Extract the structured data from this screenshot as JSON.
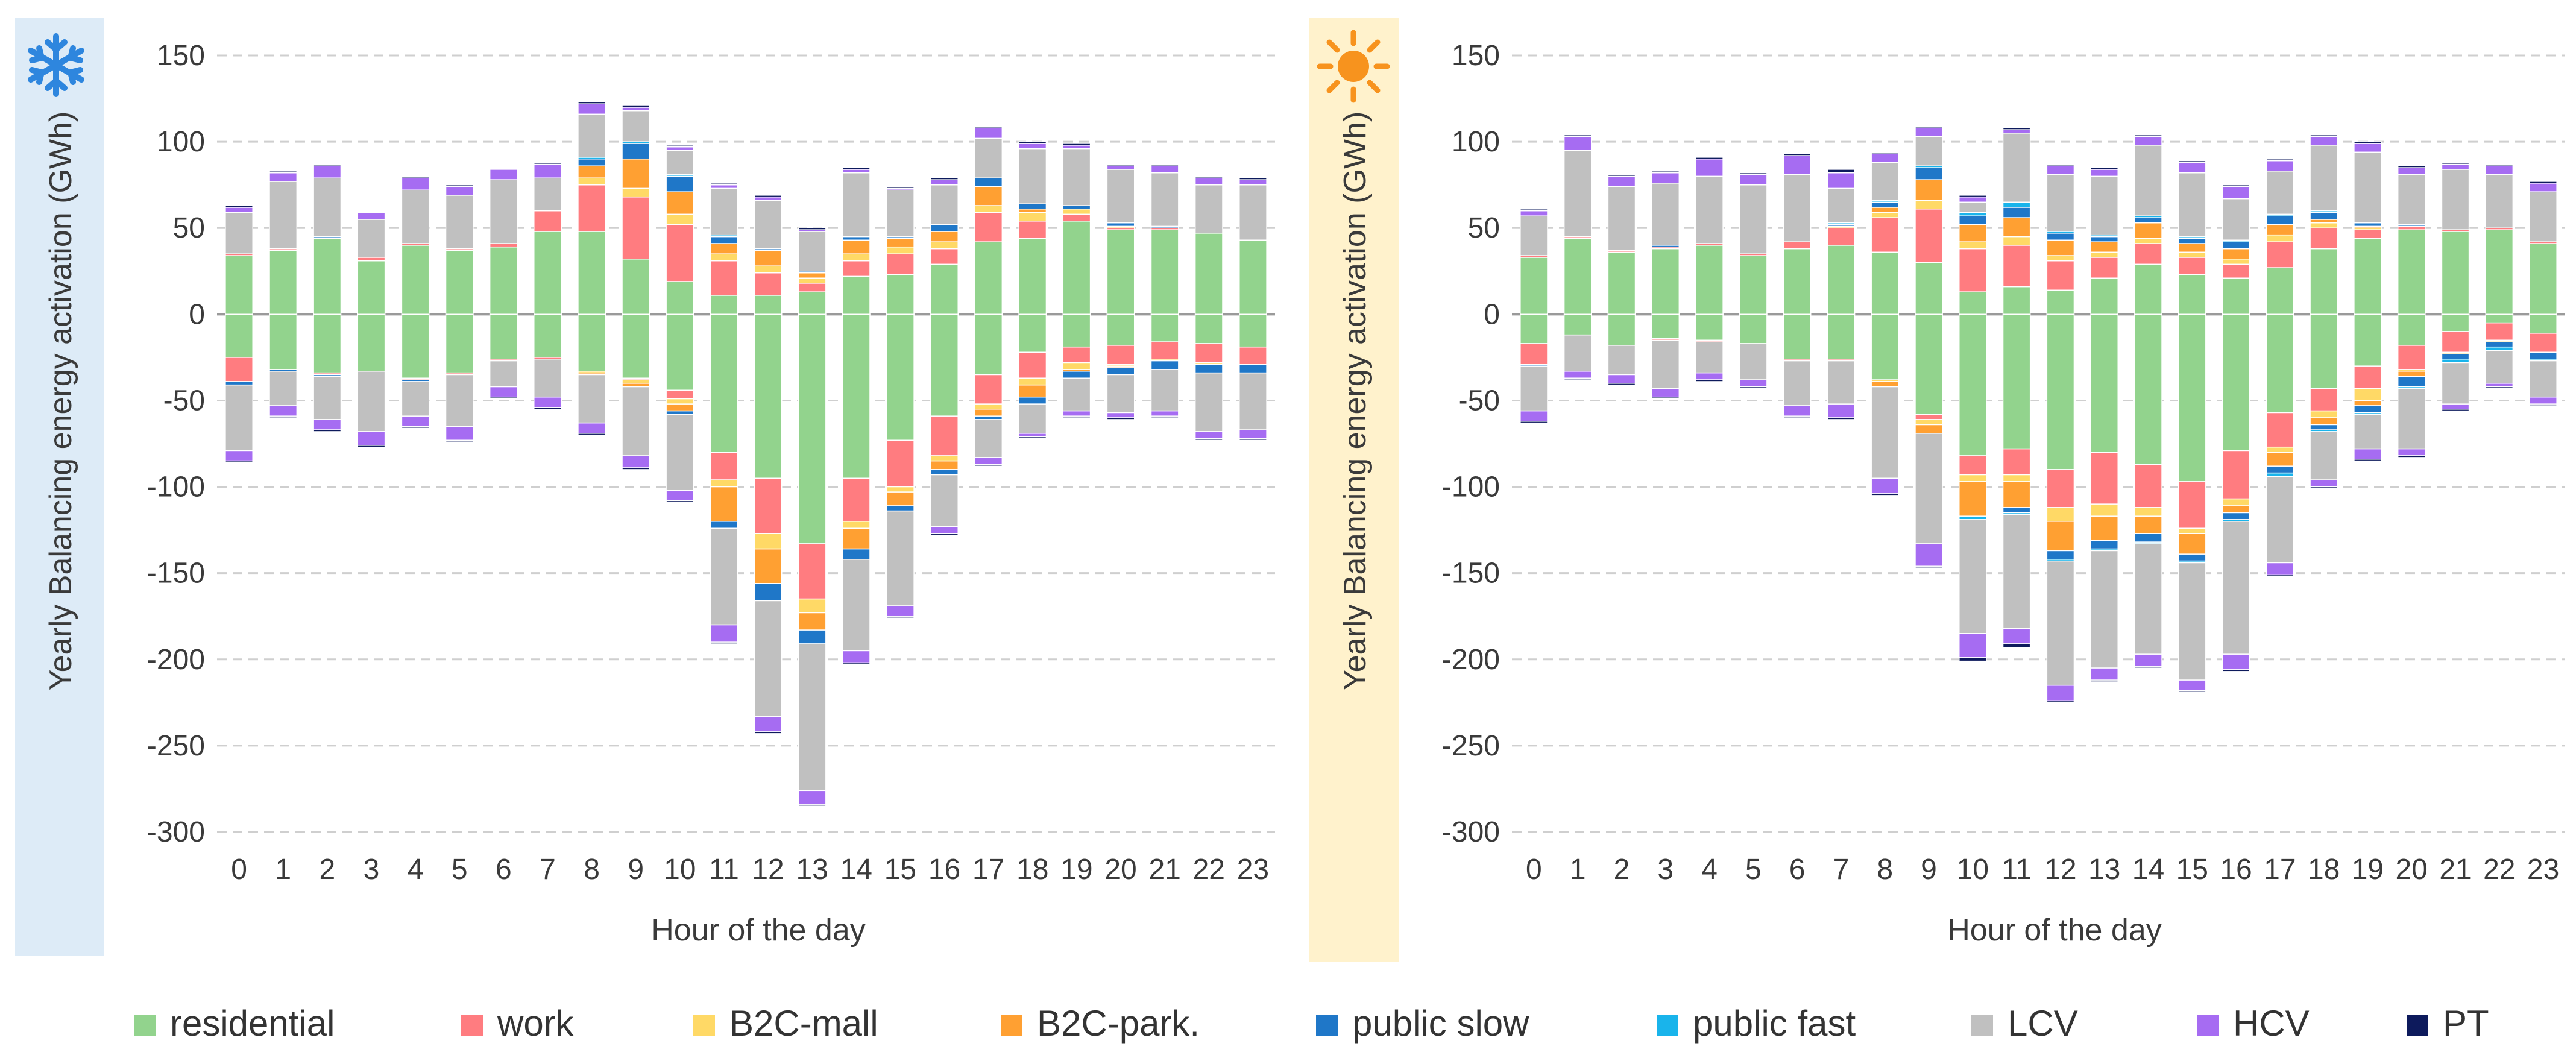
{
  "figure": {
    "panels": [
      {
        "season": "winter",
        "icon": "snowflake-icon"
      },
      {
        "season": "summer",
        "icon": "sun-icon"
      }
    ]
  },
  "chart_data": {
    "type": "bar",
    "layout": "stacked",
    "categories": [
      "0",
      "1",
      "2",
      "3",
      "4",
      "5",
      "6",
      "7",
      "8",
      "9",
      "10",
      "11",
      "12",
      "13",
      "14",
      "15",
      "16",
      "17",
      "18",
      "19",
      "20",
      "21",
      "22",
      "23"
    ],
    "xlabel": "Hour of the day",
    "ylabel": "Yearly Balancing energy activation (GWh)",
    "ylim": [
      -300,
      150
    ],
    "yticks": [
      150,
      100,
      50,
      0,
      -50,
      -100,
      -150,
      -200,
      -250,
      -300
    ],
    "grid": true,
    "legend_position": "bottom",
    "series": [
      {
        "key": "residential",
        "name": "residential",
        "color": "#92D38D"
      },
      {
        "key": "work",
        "name": "work",
        "color": "#FF7C80"
      },
      {
        "key": "b2c_mall",
        "name": "B2C-mall",
        "color": "#FFD966"
      },
      {
        "key": "b2c_park",
        "name": "B2C-park.",
        "color": "#FFA032"
      },
      {
        "key": "public_slow",
        "name": "public slow",
        "color": "#1F77C8"
      },
      {
        "key": "public_fast",
        "name": "public fast",
        "color": "#19B4EB"
      },
      {
        "key": "lcv",
        "name": "LCV",
        "color": "#C0C0C0"
      },
      {
        "key": "hcv",
        "name": "HCV",
        "color": "#A66CF2"
      },
      {
        "key": "pt",
        "name": "PT",
        "color": "#0D1A5C"
      }
    ],
    "panels": [
      {
        "name": "winter",
        "positive": {
          "residential": [
            34,
            37,
            44,
            31,
            40,
            37,
            39,
            48,
            48,
            32,
            19,
            11,
            11,
            13,
            22,
            23,
            29,
            42,
            44,
            54,
            49,
            49,
            47,
            43
          ],
          "work": [
            1,
            1,
            0,
            2,
            1,
            1,
            2,
            12,
            27,
            36,
            33,
            20,
            13,
            5,
            9,
            12,
            9,
            17,
            10,
            4,
            1,
            1,
            0,
            0
          ],
          "b2c_mall": [
            0,
            0,
            0,
            0,
            0,
            0,
            0,
            0,
            4,
            5,
            6,
            4,
            4,
            3,
            4,
            4,
            4,
            4,
            5,
            3,
            1,
            0,
            0,
            0
          ],
          "b2c_park": [
            0,
            0,
            0,
            0,
            0,
            0,
            0,
            0,
            7,
            17,
            13,
            6,
            9,
            3,
            8,
            5,
            6,
            11,
            2,
            0,
            0,
            0,
            0,
            0
          ],
          "public_slow": [
            0,
            0,
            1,
            0,
            0,
            0,
            0,
            0,
            4,
            9,
            9,
            4,
            1,
            1,
            2,
            1,
            4,
            5,
            3,
            2,
            2,
            1,
            0,
            0
          ],
          "public_fast": [
            0,
            0,
            0,
            0,
            0,
            0,
            0,
            0,
            1,
            1,
            1,
            1,
            0,
            0,
            0,
            0,
            0,
            0,
            0,
            0,
            0,
            0,
            0,
            0
          ],
          "lcv": [
            24,
            39,
            34,
            22,
            31,
            31,
            37,
            19,
            25,
            18,
            14,
            27,
            28,
            23,
            37,
            27,
            23,
            23,
            32,
            33,
            31,
            31,
            28,
            32
          ],
          "hcv": [
            3,
            5,
            7,
            4,
            7,
            5,
            6,
            8,
            6,
            2,
            2,
            2,
            2,
            1,
            2,
            1,
            3,
            6,
            3,
            2,
            2,
            4,
            4,
            3
          ],
          "pt": [
            1,
            1,
            1,
            0,
            1,
            1,
            0,
            1,
            1,
            1,
            1,
            1,
            1,
            1,
            1,
            1,
            1,
            1,
            1,
            1,
            1,
            1,
            1,
            1
          ]
        },
        "negative": {
          "residential": [
            25,
            32,
            34,
            33,
            37,
            34,
            26,
            25,
            33,
            37,
            44,
            80,
            95,
            133,
            95,
            73,
            59,
            35,
            22,
            19,
            18,
            16,
            17,
            19
          ],
          "work": [
            14,
            0,
            1,
            0,
            1,
            1,
            1,
            1,
            0,
            1,
            5,
            16,
            32,
            32,
            25,
            27,
            23,
            17,
            15,
            9,
            11,
            10,
            11,
            10
          ],
          "b2c_mall": [
            0,
            0,
            0,
            0,
            0,
            0,
            0,
            0,
            1,
            2,
            3,
            4,
            9,
            8,
            4,
            3,
            3,
            3,
            4,
            4,
            1,
            1,
            1,
            0
          ],
          "b2c_park": [
            0,
            0,
            0,
            0,
            0,
            0,
            0,
            0,
            1,
            2,
            4,
            20,
            20,
            10,
            12,
            8,
            5,
            4,
            7,
            1,
            1,
            0,
            0,
            0
          ],
          "public_slow": [
            2,
            1,
            1,
            0,
            1,
            0,
            0,
            0,
            0,
            0,
            2,
            4,
            10,
            8,
            6,
            3,
            3,
            2,
            4,
            4,
            4,
            5,
            5,
            5
          ],
          "public_fast": [
            0,
            0,
            0,
            0,
            0,
            0,
            0,
            0,
            0,
            0,
            0,
            0,
            0,
            0,
            0,
            0,
            0,
            0,
            0,
            0,
            0,
            0,
            0,
            0
          ],
          "lcv": [
            38,
            20,
            25,
            35,
            20,
            30,
            15,
            22,
            28,
            40,
            44,
            56,
            67,
            85,
            53,
            55,
            30,
            22,
            17,
            19,
            22,
            24,
            34,
            33
          ],
          "hcv": [
            6,
            6,
            6,
            8,
            6,
            8,
            6,
            6,
            6,
            7,
            6,
            10,
            9,
            8,
            7,
            6,
            4,
            4,
            2,
            3,
            3,
            3,
            4,
            5
          ],
          "pt": [
            1,
            1,
            1,
            1,
            1,
            1,
            1,
            1,
            1,
            1,
            1,
            1,
            1,
            1,
            1,
            1,
            1,
            1,
            1,
            1,
            1,
            1,
            1,
            1
          ]
        }
      },
      {
        "name": "summer",
        "positive": {
          "residential": [
            33,
            44,
            36,
            38,
            40,
            34,
            38,
            40,
            36,
            30,
            13,
            16,
            14,
            21,
            29,
            23,
            21,
            27,
            38,
            44,
            49,
            48,
            49,
            41
          ],
          "work": [
            1,
            1,
            1,
            1,
            1,
            1,
            4,
            10,
            20,
            31,
            25,
            24,
            17,
            12,
            12,
            10,
            8,
            15,
            12,
            5,
            2,
            1,
            1,
            1
          ],
          "b2c_mall": [
            0,
            0,
            0,
            0,
            0,
            0,
            0,
            1,
            3,
            5,
            4,
            5,
            3,
            3,
            3,
            3,
            3,
            4,
            3,
            1,
            0,
            0,
            0,
            0
          ],
          "b2c_park": [
            0,
            0,
            0,
            0,
            0,
            0,
            0,
            0,
            3,
            12,
            10,
            11,
            9,
            6,
            9,
            5,
            6,
            6,
            2,
            1,
            0,
            0,
            0,
            0
          ],
          "public_slow": [
            0,
            0,
            0,
            1,
            0,
            0,
            0,
            1,
            3,
            7,
            5,
            6,
            4,
            3,
            3,
            3,
            4,
            5,
            4,
            2,
            1,
            0,
            0,
            0
          ],
          "public_fast": [
            0,
            0,
            0,
            0,
            0,
            0,
            0,
            1,
            1,
            1,
            2,
            3,
            1,
            1,
            1,
            1,
            1,
            1,
            1,
            0,
            0,
            0,
            0,
            0
          ],
          "lcv": [
            23,
            50,
            37,
            36,
            39,
            40,
            39,
            20,
            22,
            17,
            6,
            40,
            33,
            34,
            41,
            37,
            24,
            25,
            38,
            41,
            29,
            35,
            31,
            29
          ],
          "hcv": [
            3,
            8,
            6,
            6,
            10,
            6,
            11,
            9,
            5,
            5,
            3,
            2,
            5,
            4,
            5,
            6,
            7,
            6,
            5,
            5,
            4,
            3,
            5,
            5
          ],
          "pt": [
            1,
            1,
            1,
            1,
            1,
            1,
            1,
            2,
            1,
            1,
            1,
            1,
            1,
            1,
            1,
            1,
            1,
            1,
            1,
            1,
            1,
            1,
            1,
            1
          ]
        },
        "negative": {
          "residential": [
            17,
            12,
            18,
            14,
            15,
            17,
            26,
            26,
            38,
            58,
            82,
            78,
            90,
            80,
            87,
            97,
            79,
            57,
            43,
            30,
            18,
            10,
            5,
            11
          ],
          "work": [
            12,
            0,
            0,
            1,
            1,
            0,
            1,
            1,
            0,
            3,
            11,
            15,
            22,
            30,
            25,
            27,
            28,
            20,
            13,
            13,
            14,
            12,
            10,
            11
          ],
          "b2c_mall": [
            0,
            0,
            0,
            0,
            0,
            0,
            0,
            0,
            1,
            3,
            4,
            4,
            8,
            7,
            5,
            3,
            4,
            3,
            4,
            7,
            1,
            1,
            1,
            0
          ],
          "b2c_park": [
            0,
            0,
            0,
            0,
            0,
            0,
            0,
            0,
            3,
            5,
            20,
            15,
            17,
            14,
            10,
            12,
            4,
            8,
            4,
            3,
            3,
            0,
            0,
            0
          ],
          "public_slow": [
            1,
            0,
            0,
            0,
            0,
            0,
            0,
            0,
            0,
            0,
            0,
            3,
            5,
            5,
            5,
            4,
            4,
            4,
            3,
            4,
            6,
            3,
            3,
            4
          ],
          "public_fast": [
            0,
            0,
            0,
            0,
            0,
            0,
            0,
            0,
            0,
            0,
            2,
            1,
            1,
            1,
            1,
            1,
            1,
            2,
            1,
            1,
            1,
            2,
            2,
            1
          ],
          "lcv": [
            26,
            21,
            17,
            28,
            18,
            21,
            26,
            25,
            53,
            64,
            66,
            66,
            72,
            68,
            64,
            68,
            77,
            50,
            28,
            20,
            35,
            24,
            19,
            21
          ],
          "hcv": [
            6,
            4,
            5,
            5,
            4,
            4,
            6,
            8,
            9,
            13,
            14,
            9,
            9,
            7,
            7,
            6,
            9,
            7,
            4,
            6,
            4,
            3,
            2,
            4
          ],
          "pt": [
            1,
            1,
            1,
            1,
            1,
            1,
            1,
            1,
            1,
            1,
            2,
            2,
            1,
            1,
            1,
            1,
            1,
            1,
            1,
            1,
            1,
            1,
            1,
            1
          ]
        }
      }
    ]
  }
}
